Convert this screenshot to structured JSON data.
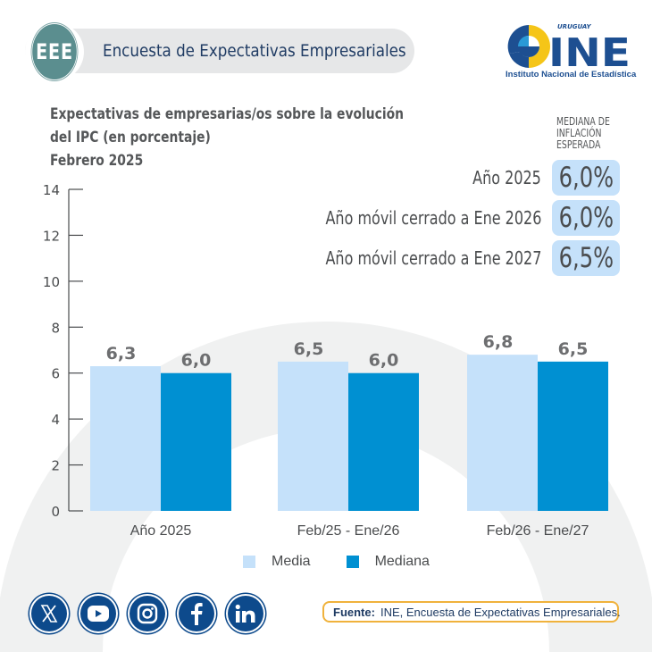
{
  "header": {
    "badge": "EEE",
    "title": "Encuesta de Expectativas Empresariales"
  },
  "logo": {
    "country": "URUGUAY",
    "acronym": "INE",
    "caption": "Instituto Nacional de Estadística",
    "colors": {
      "blue": "#1d4f91",
      "yellow": "#f5c518",
      "light_blue": "#2a9ad6"
    }
  },
  "title_lines": [
    "Expectativas de empresarias/os sobre la evolución",
    "del IPC (en porcentaje)",
    "Febrero 2025"
  ],
  "median_panel": {
    "header": [
      "MEDIANA DE",
      "INFLACIÓN",
      "ESPERADA"
    ],
    "rows": [
      {
        "label": "Año 2025",
        "value": "6,0%"
      },
      {
        "label": "Año móvil cerrado a Ene 2026",
        "value": "6,0%"
      },
      {
        "label": "Año móvil cerrado a Ene 2027",
        "value": "6,5%"
      }
    ]
  },
  "chart_data": {
    "type": "bar",
    "title": "Expectativas de empresarias/os sobre la evolución del IPC (en porcentaje) Febrero 2025",
    "xlabel": "",
    "ylabel": "",
    "categories": [
      "Año 2025",
      "Feb/25 - Ene/26",
      "Feb/26 - Ene/27"
    ],
    "series": [
      {
        "name": "Media",
        "values": [
          6.3,
          6.5,
          6.8
        ],
        "labels": [
          "6,3",
          "6,5",
          "6,8"
        ],
        "color": "#c5e1fa"
      },
      {
        "name": "Mediana",
        "values": [
          6.0,
          6.0,
          6.5
        ],
        "labels": [
          "6,0",
          "6,0",
          "6,5"
        ],
        "color": "#0090d2"
      }
    ],
    "ylim": [
      0,
      14
    ],
    "yticks": [
      0,
      2,
      4,
      6,
      8,
      10,
      12,
      14
    ],
    "grid": false,
    "legend": "bottom-center"
  },
  "social": [
    {
      "name": "x",
      "label": "X"
    },
    {
      "name": "youtube",
      "label": "YouTube"
    },
    {
      "name": "instagram",
      "label": "Instagram"
    },
    {
      "name": "facebook",
      "label": "Facebook"
    },
    {
      "name": "linkedin",
      "label": "LinkedIn"
    }
  ],
  "source": {
    "label": "Fuente:",
    "text": "INE, Encuesta de Expectativas Empresariales."
  }
}
